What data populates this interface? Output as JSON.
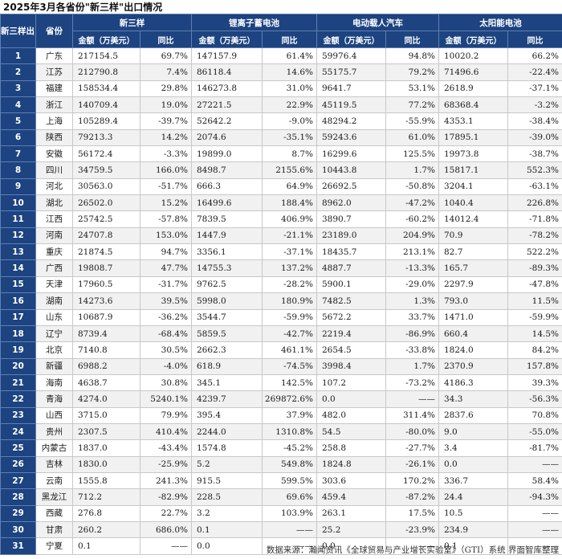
{
  "title": "2025年3月各省份\"新三样\"出口情况",
  "header": {
    "rank": "新三样出口额排名",
    "province": "省份",
    "groups": [
      "新三样",
      "锂离子蓄电池",
      "电动载人汽车",
      "太阳能电池"
    ],
    "amount_label": "金额（万美元）",
    "yoy_label": "同比"
  },
  "rows": [
    {
      "rank": "1",
      "prov": "广东",
      "v": [
        "217154.5",
        "69.7%",
        "147157.9",
        "61.4%",
        "59976.4",
        "94.8%",
        "10020.2",
        "66.2%"
      ]
    },
    {
      "rank": "2",
      "prov": "江苏",
      "v": [
        "212790.8",
        "7.4%",
        "86118.4",
        "14.6%",
        "55175.7",
        "79.2%",
        "71496.6",
        "-22.4%"
      ]
    },
    {
      "rank": "3",
      "prov": "福建",
      "v": [
        "158534.4",
        "29.8%",
        "146273.8",
        "31.0%",
        "9641.7",
        "53.1%",
        "2618.9",
        "-37.1%"
      ]
    },
    {
      "rank": "4",
      "prov": "浙江",
      "v": [
        "140709.4",
        "19.0%",
        "27221.5",
        "22.9%",
        "45119.5",
        "77.2%",
        "68368.4",
        "-3.2%"
      ]
    },
    {
      "rank": "5",
      "prov": "上海",
      "v": [
        "105289.4",
        "-39.7%",
        "52642.2",
        "-9.0%",
        "48294.2",
        "-55.9%",
        "4353.1",
        "-38.4%"
      ]
    },
    {
      "rank": "6",
      "prov": "陕西",
      "v": [
        "79213.3",
        "14.2%",
        "2074.6",
        "-35.1%",
        "59243.6",
        "61.0%",
        "17895.1",
        "-39.0%"
      ]
    },
    {
      "rank": "7",
      "prov": "安徽",
      "v": [
        "56172.4",
        "-3.3%",
        "19899.0",
        "8.7%",
        "16299.6",
        "125.5%",
        "19973.8",
        "-38.7%"
      ]
    },
    {
      "rank": "8",
      "prov": "四川",
      "v": [
        "34759.5",
        "166.0%",
        "8498.7",
        "2155.6%",
        "10443.8",
        "1.7%",
        "15817.1",
        "552.3%"
      ]
    },
    {
      "rank": "9",
      "prov": "河北",
      "v": [
        "30563.0",
        "-51.7%",
        "666.3",
        "64.9%",
        "26692.5",
        "-50.8%",
        "3204.1",
        "-63.1%"
      ]
    },
    {
      "rank": "10",
      "prov": "湖北",
      "v": [
        "26502.0",
        "15.2%",
        "16499.6",
        "188.4%",
        "8962.0",
        "-47.2%",
        "1040.4",
        "226.8%"
      ]
    },
    {
      "rank": "11",
      "prov": "江西",
      "v": [
        "25742.5",
        "-57.8%",
        "7839.5",
        "406.9%",
        "3890.7",
        "-60.2%",
        "14012.4",
        "-71.8%"
      ]
    },
    {
      "rank": "12",
      "prov": "河南",
      "v": [
        "24707.8",
        "153.0%",
        "1447.9",
        "-21.1%",
        "23189.0",
        "204.9%",
        "70.9",
        "-78.2%"
      ]
    },
    {
      "rank": "13",
      "prov": "重庆",
      "v": [
        "21874.5",
        "94.7%",
        "3356.1",
        "-37.1%",
        "18435.7",
        "213.1%",
        "82.7",
        "522.2%"
      ]
    },
    {
      "rank": "14",
      "prov": "广西",
      "v": [
        "19808.7",
        "47.7%",
        "14755.3",
        "137.2%",
        "4887.7",
        "-13.3%",
        "165.7",
        "-89.3%"
      ]
    },
    {
      "rank": "15",
      "prov": "天津",
      "v": [
        "17960.5",
        "-31.7%",
        "9762.5",
        "-28.2%",
        "5900.1",
        "-29.0%",
        "2297.9",
        "-47.8%"
      ]
    },
    {
      "rank": "16",
      "prov": "湖南",
      "v": [
        "14273.6",
        "39.5%",
        "5998.0",
        "180.9%",
        "7482.5",
        "1.3%",
        "793.0",
        "11.5%"
      ]
    },
    {
      "rank": "17",
      "prov": "山东",
      "v": [
        "10687.9",
        "-36.2%",
        "3544.7",
        "-59.9%",
        "5672.2",
        "33.7%",
        "1471.0",
        "-59.9%"
      ]
    },
    {
      "rank": "18",
      "prov": "辽宁",
      "v": [
        "8739.4",
        "-68.4%",
        "5859.5",
        "-42.7%",
        "2219.4",
        "-86.9%",
        "660.4",
        "14.5%"
      ]
    },
    {
      "rank": "19",
      "prov": "北京",
      "v": [
        "7140.8",
        "30.5%",
        "2662.3",
        "461.1%",
        "2654.5",
        "-33.8%",
        "1824.0",
        "84.2%"
      ]
    },
    {
      "rank": "20",
      "prov": "新疆",
      "v": [
        "6988.2",
        "-4.0%",
        "618.9",
        "-74.5%",
        "3998.4",
        "1.7%",
        "2370.9",
        "157.8%"
      ]
    },
    {
      "rank": "21",
      "prov": "海南",
      "v": [
        "4638.7",
        "30.8%",
        "345.1",
        "142.5%",
        "107.2",
        "-73.2%",
        "4186.3",
        "39.3%"
      ]
    },
    {
      "rank": "22",
      "prov": "青海",
      "v": [
        "4274.0",
        "5240.1%",
        "4239.7",
        "269872.6%",
        "0.0",
        "——",
        "34.3",
        "-56.3%"
      ]
    },
    {
      "rank": "23",
      "prov": "山西",
      "v": [
        "3715.0",
        "79.9%",
        "395.4",
        "37.9%",
        "482.0",
        "311.4%",
        "2837.6",
        "70.8%"
      ]
    },
    {
      "rank": "24",
      "prov": "贵州",
      "v": [
        "2307.5",
        "410.4%",
        "2244.0",
        "1310.8%",
        "54.5",
        "-80.0%",
        "9.0",
        "-55.0%"
      ]
    },
    {
      "rank": "25",
      "prov": "内蒙古",
      "v": [
        "1837.0",
        "-43.4%",
        "1574.8",
        "-45.2%",
        "258.8",
        "-27.7%",
        "3.4",
        "-81.7%"
      ]
    },
    {
      "rank": "26",
      "prov": "吉林",
      "v": [
        "1830.0",
        "-25.9%",
        "5.2",
        "549.8%",
        "1824.8",
        "-26.1%",
        "0.0",
        "——"
      ]
    },
    {
      "rank": "27",
      "prov": "云南",
      "v": [
        "1555.8",
        "241.3%",
        "915.5",
        "599.5%",
        "303.6",
        "170.2%",
        "336.7",
        "58.4%"
      ]
    },
    {
      "rank": "28",
      "prov": "黑龙江",
      "v": [
        "712.2",
        "-82.9%",
        "228.5",
        "69.6%",
        "459.4",
        "-87.2%",
        "24.4",
        "-94.3%"
      ]
    },
    {
      "rank": "29",
      "prov": "西藏",
      "v": [
        "276.8",
        "22.7%",
        "3.2",
        "103.9%",
        "263.1",
        "17.5%",
        "10.5",
        "——"
      ]
    },
    {
      "rank": "30",
      "prov": "甘肃",
      "v": [
        "260.2",
        "686.0%",
        "0.1",
        "——",
        "25.2",
        "-23.9%",
        "234.9",
        "——"
      ]
    },
    {
      "rank": "31",
      "prov": "宁夏",
      "v": [
        "0.1",
        "——",
        "0.0",
        "——",
        "0.0",
        "——",
        "0.1",
        "——"
      ]
    }
  ],
  "source": "数据来源：瀚闻资讯《全球贸易与产业增长实验室》（GTI）系统  界面智库整理"
}
